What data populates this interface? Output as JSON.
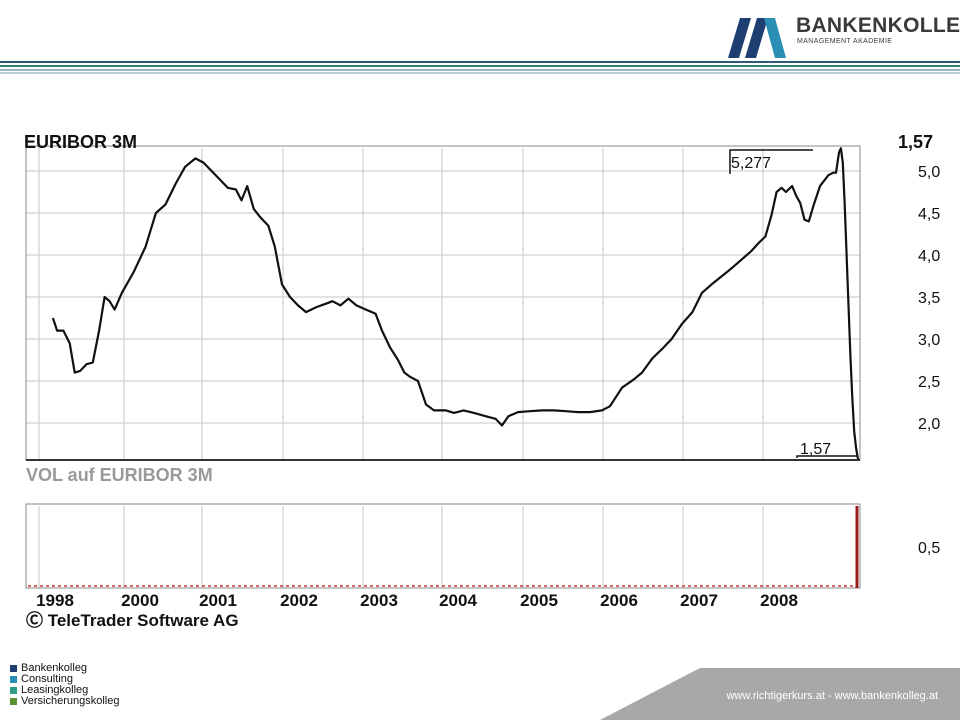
{
  "header": {
    "brand_name": "BANKENKOLLEG",
    "brand_sub": "MANAGEMENT AKADEMIE",
    "logo_mark": "ba-logo"
  },
  "chart_data": {
    "type": "line",
    "title": "EURIBOR 3M",
    "last_value_label": "1,57",
    "high_marker": "5,277",
    "low_marker": "1,57",
    "x_ticks": [
      "1998",
      "2000",
      "2001",
      "2002",
      "2003",
      "2004",
      "2005",
      "2006",
      "2007",
      "2008"
    ],
    "y_ticks": [
      "5,0",
      "4,5",
      "4,0",
      "3,5",
      "3,0",
      "2,5",
      "2,0"
    ],
    "ylim": [
      1.6,
      5.3
    ],
    "grid": true,
    "series": [
      {
        "values": [
          [
            1998.45,
            3.25
          ],
          [
            1998.55,
            3.1
          ],
          [
            1998.7,
            3.1
          ],
          [
            1998.85,
            2.95
          ],
          [
            1998.97,
            2.6
          ],
          [
            1999.1,
            2.62
          ],
          [
            1999.25,
            2.7
          ],
          [
            1999.4,
            2.72
          ],
          [
            1999.55,
            3.1
          ],
          [
            1999.68,
            3.5
          ],
          [
            1999.8,
            3.45
          ],
          [
            1999.92,
            3.35
          ],
          [
            2000.05,
            3.55
          ],
          [
            2000.2,
            3.8
          ],
          [
            2000.35,
            4.1
          ],
          [
            2000.48,
            4.5
          ],
          [
            2000.6,
            4.6
          ],
          [
            2000.73,
            4.85
          ],
          [
            2000.85,
            5.05
          ],
          [
            2000.98,
            5.15
          ],
          [
            2001.08,
            5.1
          ],
          [
            2001.18,
            5.0
          ],
          [
            2001.28,
            4.9
          ],
          [
            2001.38,
            4.8
          ],
          [
            2001.48,
            4.78
          ],
          [
            2001.55,
            4.65
          ],
          [
            2001.62,
            4.82
          ],
          [
            2001.7,
            4.55
          ],
          [
            2001.78,
            4.45
          ],
          [
            2001.88,
            4.35
          ],
          [
            2001.96,
            4.1
          ],
          [
            2002.05,
            3.65
          ],
          [
            2002.15,
            3.5
          ],
          [
            2002.25,
            3.4
          ],
          [
            2002.35,
            3.32
          ],
          [
            2002.48,
            3.38
          ],
          [
            2002.6,
            3.42
          ],
          [
            2002.68,
            3.45
          ],
          [
            2002.78,
            3.4
          ],
          [
            2002.88,
            3.48
          ],
          [
            2002.98,
            3.4
          ],
          [
            2003.1,
            3.35
          ],
          [
            2003.22,
            3.3
          ],
          [
            2003.3,
            3.1
          ],
          [
            2003.4,
            2.9
          ],
          [
            2003.5,
            2.75
          ],
          [
            2003.58,
            2.6
          ],
          [
            2003.65,
            2.55
          ],
          [
            2003.75,
            2.5
          ],
          [
            2003.85,
            2.22
          ],
          [
            2003.95,
            2.15
          ],
          [
            2004.1,
            2.15
          ],
          [
            2004.2,
            2.12
          ],
          [
            2004.32,
            2.15
          ],
          [
            2004.45,
            2.12
          ],
          [
            2004.6,
            2.08
          ],
          [
            2004.72,
            2.05
          ],
          [
            2004.8,
            1.97
          ],
          [
            2004.88,
            2.08
          ],
          [
            2005.0,
            2.13
          ],
          [
            2005.15,
            2.14
          ],
          [
            2005.3,
            2.15
          ],
          [
            2005.45,
            2.15
          ],
          [
            2005.6,
            2.14
          ],
          [
            2005.75,
            2.13
          ],
          [
            2005.9,
            2.13
          ],
          [
            2006.05,
            2.15
          ],
          [
            2006.15,
            2.2
          ],
          [
            2006.3,
            2.42
          ],
          [
            2006.45,
            2.52
          ],
          [
            2006.55,
            2.6
          ],
          [
            2006.68,
            2.77
          ],
          [
            2006.8,
            2.88
          ],
          [
            2006.92,
            3.0
          ],
          [
            2007.05,
            3.18
          ],
          [
            2007.18,
            3.32
          ],
          [
            2007.3,
            3.55
          ],
          [
            2007.42,
            3.65
          ],
          [
            2007.55,
            3.75
          ],
          [
            2007.68,
            3.85
          ],
          [
            2007.8,
            3.95
          ],
          [
            2007.92,
            4.05
          ],
          [
            2008.02,
            4.15
          ],
          [
            2008.12,
            4.22
          ],
          [
            2008.22,
            4.48
          ],
          [
            2008.3,
            4.75
          ],
          [
            2008.38,
            4.8
          ],
          [
            2008.45,
            4.75
          ],
          [
            2008.55,
            4.82
          ],
          [
            2008.62,
            4.7
          ],
          [
            2008.68,
            4.62
          ],
          [
            2008.75,
            4.42
          ],
          [
            2008.82,
            4.4
          ],
          [
            2008.9,
            4.6
          ],
          [
            2009.0,
            4.82
          ],
          [
            2009.1,
            4.88
          ],
          [
            2009.22,
            4.95
          ],
          [
            2009.35,
            4.98
          ],
          [
            2009.42,
            4.98
          ],
          [
            2009.5,
            5.22
          ],
          [
            2009.55,
            5.27
          ],
          [
            2009.6,
            5.1
          ],
          [
            2009.65,
            4.6
          ],
          [
            2009.7,
            4.0
          ],
          [
            2009.75,
            3.4
          ],
          [
            2009.8,
            2.8
          ],
          [
            2009.85,
            2.3
          ],
          [
            2009.9,
            1.9
          ],
          [
            2009.95,
            1.7
          ],
          [
            2010.0,
            1.57
          ]
        ]
      }
    ]
  },
  "volume_chart": {
    "title": "VOL   auf EURIBOR 3M",
    "y_ticks": [
      "0,5"
    ]
  },
  "credit": "Ⓒ TeleTrader Software AG",
  "legend_items": [
    {
      "label": "Bankenkolleg",
      "color": "#1f3f73"
    },
    {
      "label": "Consulting",
      "color": "#2b8fb5"
    },
    {
      "label": "Leasingkolleg",
      "color": "#2f9a88"
    },
    {
      "label": "Versicherungskolleg",
      "color": "#5f8f33"
    }
  ],
  "footer": {
    "links": "www.richtigerkurs.at  -  www.bankenkolleg.at"
  }
}
